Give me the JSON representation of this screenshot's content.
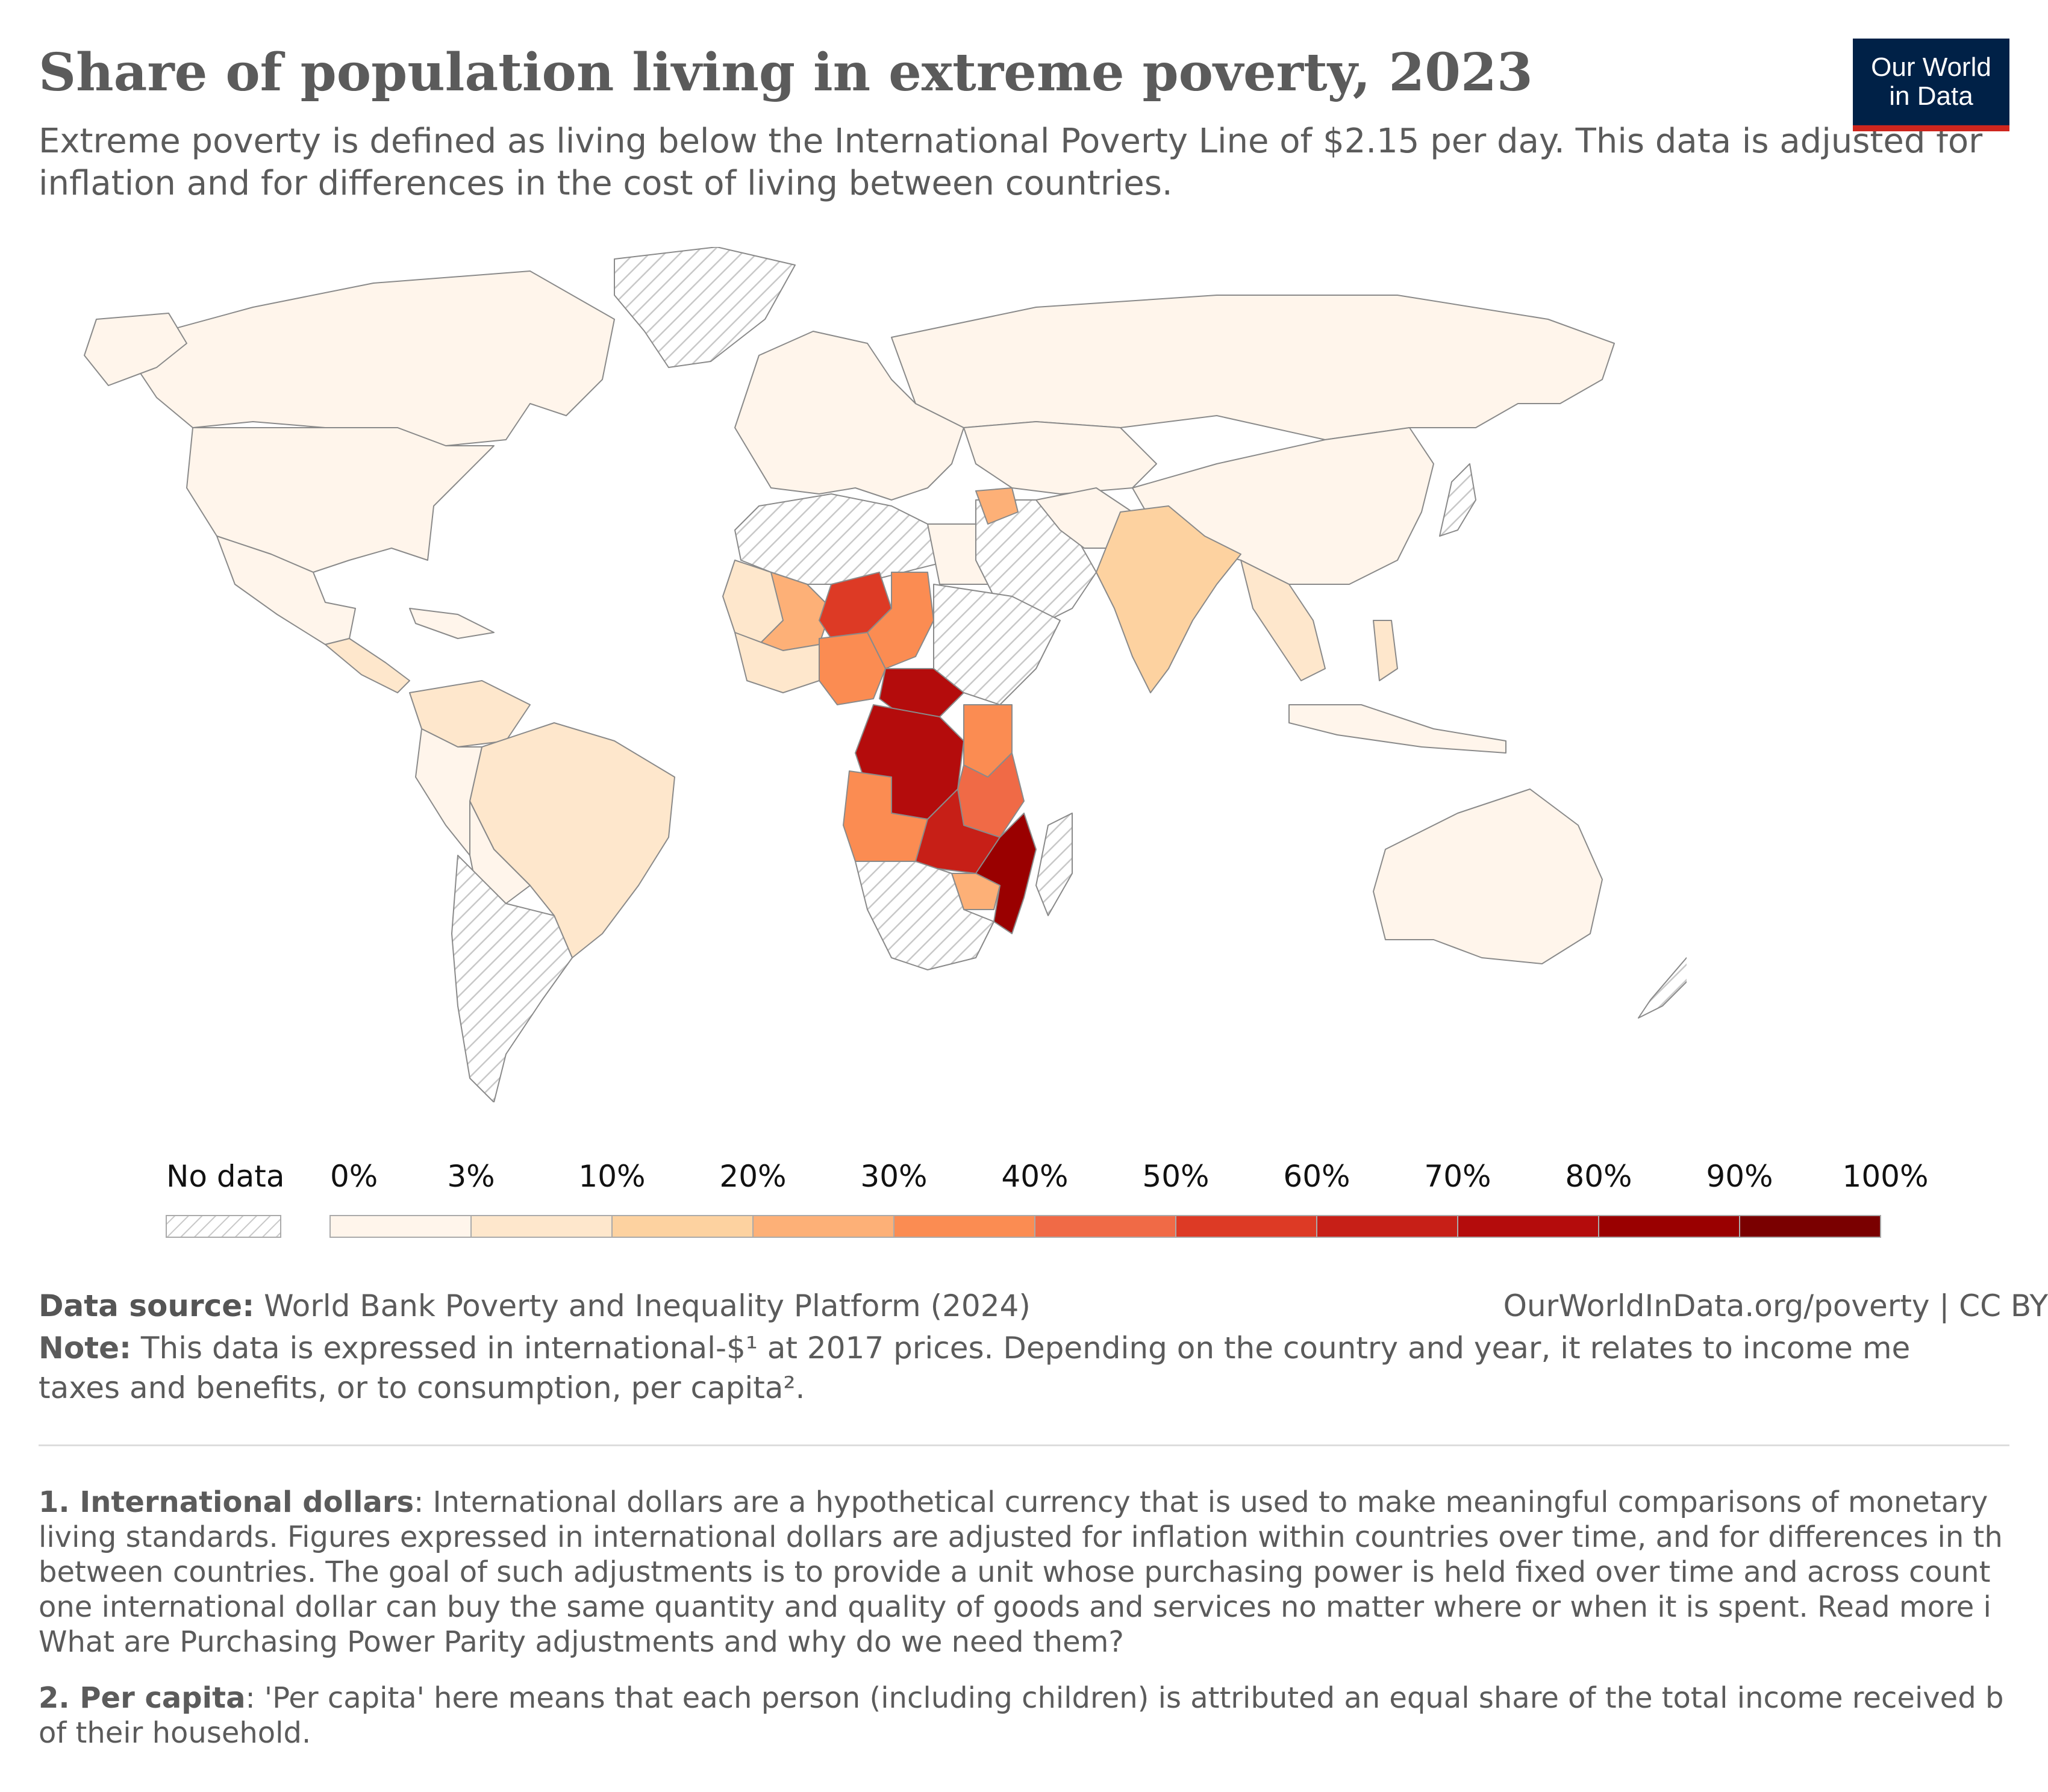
{
  "header": {
    "title": "Share of population living in extreme poverty, 2023",
    "subtitle": "Extreme poverty is defined as living below the International Poverty Line of $2.15 per day. This data is adjusted for inflation and for differences in the cost of living between countries.",
    "logo_line1": "Our World",
    "logo_line2": "in Data"
  },
  "colors": {
    "no_data": "#e0e0e0",
    "border": "#888888",
    "accent_red": "#ce261e",
    "logo_bg": "#002147"
  },
  "legend": {
    "no_data_label": "No data",
    "bins": [
      {
        "label": "0%",
        "color": "#fff5eb"
      },
      {
        "label": "3%",
        "color": "#fee7cc"
      },
      {
        "label": "10%",
        "color": "#fdd2a0"
      },
      {
        "label": "20%",
        "color": "#fdb077"
      },
      {
        "label": "30%",
        "color": "#fb8c52"
      },
      {
        "label": "40%",
        "color": "#f06a46"
      },
      {
        "label": "50%",
        "color": "#dd3a25"
      },
      {
        "label": "60%",
        "color": "#c71f17"
      },
      {
        "label": "70%",
        "color": "#b40c0c"
      },
      {
        "label": "80%",
        "color": "#9a0000"
      },
      {
        "label": "90%",
        "color": "#7a0000"
      }
    ],
    "end_label": "100%"
  },
  "footer": {
    "source_label": "Data source:",
    "source_text": "World Bank Poverty and Inequality Platform (2024)",
    "url": "OurWorldInData.org/poverty | CC BY",
    "note_label": "Note:",
    "note_line1": "This data is expressed in international-$¹ at 2017 prices. Depending on the country and year, it relates to income me",
    "note_line2": "taxes and benefits, or to consumption, per capita².",
    "fn1_label": "1. International dollars",
    "fn1_line1": ": International dollars are a hypothetical currency that is used to make meaningful comparisons of monetary",
    "fn1_line2": "living standards. Figures expressed in international dollars are adjusted for inflation within countries over time, and for differences in th",
    "fn1_line3": "between countries. The goal of such adjustments is to provide a unit whose purchasing power is held fixed over time and across count",
    "fn1_line4": "one international dollar can buy the same quantity and quality of goods and services no matter where or when it is spent. Read more i",
    "fn1_line5": "What are Purchasing Power Parity adjustments and why do we need them?",
    "fn2_label": "2. Per capita",
    "fn2_line1": ": 'Per capita' here means that each person (including children) is attributed an equal share of the total income received b",
    "fn2_line2": "of their household."
  }
}
